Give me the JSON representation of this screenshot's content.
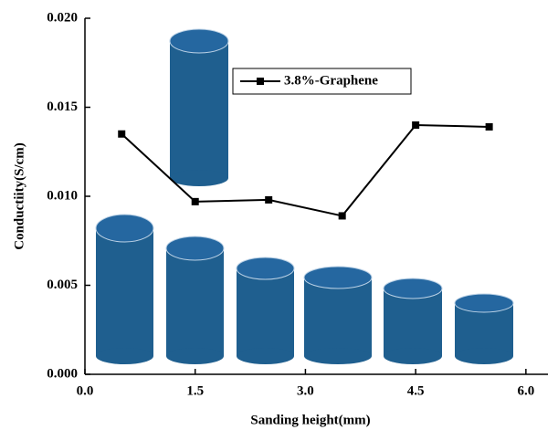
{
  "chart_data": {
    "type": "line",
    "x_label": "Sanding height(mm)",
    "y_label": "Conductiity(S/cm)",
    "x": [
      0.5,
      1.5,
      2.5,
      3.5,
      4.5,
      5.5
    ],
    "series": [
      {
        "name": "3.8%-Graphene",
        "color": "#000000",
        "values": [
          0.0135,
          0.0097,
          0.0098,
          0.0089,
          0.014,
          0.0139
        ]
      }
    ],
    "xlim": [
      0,
      6.3
    ],
    "ylim": [
      0,
      0.02
    ],
    "xticks": [
      {
        "value": 0,
        "label": "0.0"
      },
      1.5,
      {
        "value": 3,
        "label": "3.0"
      },
      4.5,
      {
        "value": 6,
        "label": "6.0"
      }
    ],
    "yticks": [
      {
        "value": 0,
        "label": "0.000"
      },
      {
        "value": 0.005,
        "label": "0.005"
      },
      {
        "value": 0.01,
        "label": "0.010"
      },
      {
        "value": 0.015,
        "label": "0.015"
      },
      {
        "value": 0.02,
        "label": "0.020"
      }
    ],
    "legend": "upper-center"
  }
}
